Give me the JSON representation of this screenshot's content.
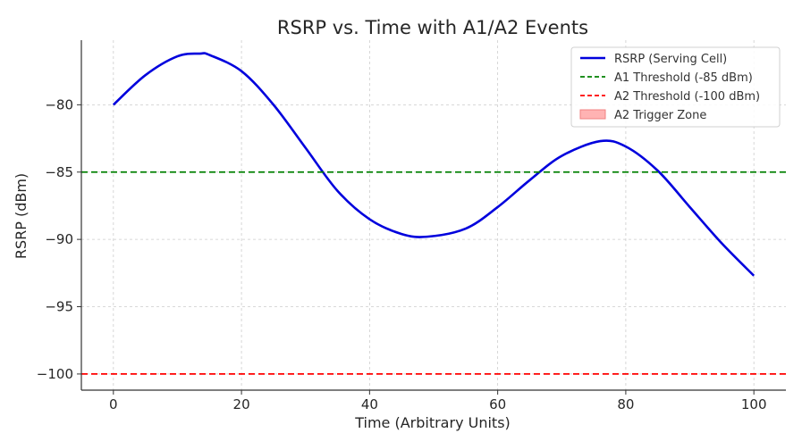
{
  "chart_data": {
    "type": "line",
    "title": "RSRP vs. Time with A1/A2 Events",
    "xlabel": "Time (Arbitrary Units)",
    "ylabel": "RSRP (dBm)",
    "xlim": [
      -5,
      105
    ],
    "ylim": [
      -101.2,
      -75.2
    ],
    "xticks": [
      0,
      20,
      40,
      60,
      80,
      100
    ],
    "yticks": [
      -100,
      -95,
      -90,
      -85,
      -80
    ],
    "xtick_labels": [
      "0",
      "20",
      "40",
      "60",
      "80",
      "100"
    ],
    "ytick_labels": [
      "−100",
      "−95",
      "−90",
      "−85",
      "−80"
    ],
    "grid": true,
    "legend_position": "top-right",
    "series": [
      {
        "name": "RSRP (Serving Cell)",
        "style": "solid",
        "color": "#0000dd",
        "x": [
          0,
          5,
          10,
          13.5,
          15,
          20,
          25,
          30,
          35,
          40,
          45,
          49,
          55,
          60,
          65,
          70,
          76,
          80,
          85,
          90,
          95,
          100
        ],
        "y": [
          -80.0,
          -77.8,
          -76.4,
          -76.2,
          -76.3,
          -77.5,
          -80.0,
          -83.2,
          -86.4,
          -88.5,
          -89.6,
          -89.8,
          -89.2,
          -87.6,
          -85.6,
          -83.8,
          -82.7,
          -83.1,
          -84.9,
          -87.6,
          -90.3,
          -92.7
        ]
      },
      {
        "name": "A1 Threshold (-85 dBm)",
        "style": "dashed",
        "color": "#008000",
        "x": [
          -5,
          105
        ],
        "y": [
          -85,
          -85
        ]
      },
      {
        "name": "A2 Threshold (-100 dBm)",
        "style": "dashed",
        "color": "#ff0000",
        "x": [
          -5,
          105
        ],
        "y": [
          -100,
          -100
        ]
      }
    ],
    "legend": [
      {
        "label": "RSRP (Serving Cell)",
        "kind": "line",
        "style": "solid",
        "color": "#0000dd"
      },
      {
        "label": "A1 Threshold (-85 dBm)",
        "kind": "line",
        "style": "dashed",
        "color": "#008000"
      },
      {
        "label": "A2 Threshold (-100 dBm)",
        "kind": "line",
        "style": "dashed",
        "color": "#ff0000"
      },
      {
        "label": "A2 Trigger Zone",
        "kind": "patch",
        "color": "#ffb3b3"
      }
    ]
  }
}
